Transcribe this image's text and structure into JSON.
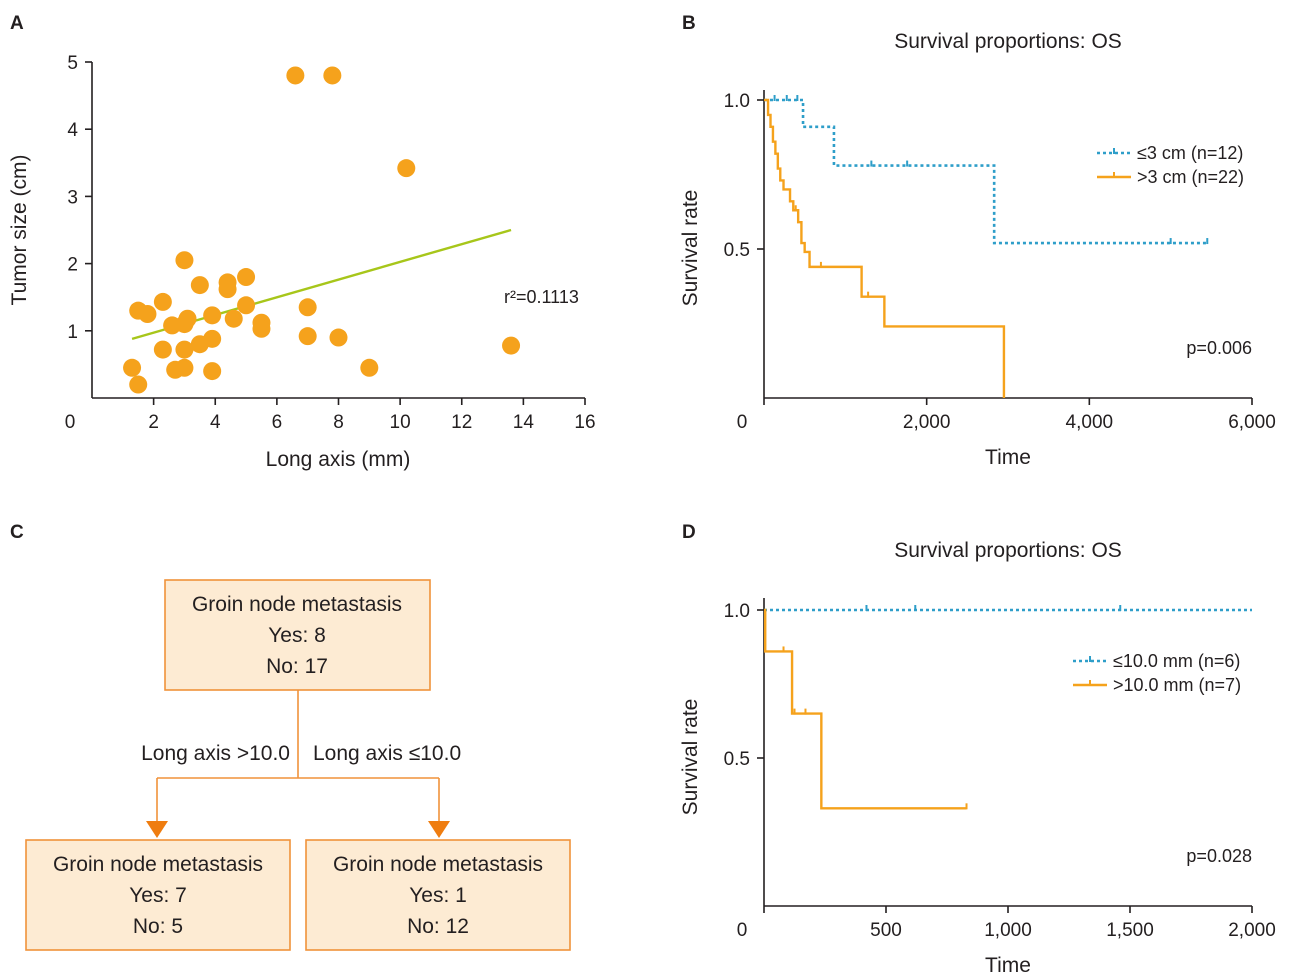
{
  "panel_labels": [
    "A",
    "B",
    "C",
    "D"
  ],
  "colors": {
    "orange": "#f5a21c",
    "blue": "#2e9ec9",
    "green": "#a7c61a",
    "box_fill": "#fdebd3",
    "box_border": "#f0923a"
  },
  "chart_data": [
    {
      "panel": "A",
      "type": "scatter",
      "title": "",
      "xlabel": "Long axis (mm)",
      "ylabel": "Tumor size (cm)",
      "xlim": [
        0,
        16
      ],
      "ylim": [
        0,
        5
      ],
      "xticks": [
        "0",
        "2",
        "4",
        "6",
        "8",
        "10",
        "12",
        "14",
        "16"
      ],
      "yticks": [
        "1",
        "2",
        "3",
        "4",
        "5"
      ],
      "annotation": "r²=0.1113",
      "points": [
        {
          "x": 1.3,
          "y": 0.45
        },
        {
          "x": 1.5,
          "y": 0.2
        },
        {
          "x": 1.5,
          "y": 1.3
        },
        {
          "x": 1.8,
          "y": 1.25
        },
        {
          "x": 2.3,
          "y": 1.43
        },
        {
          "x": 2.3,
          "y": 0.72
        },
        {
          "x": 2.6,
          "y": 1.08
        },
        {
          "x": 2.7,
          "y": 0.42
        },
        {
          "x": 3.0,
          "y": 2.05
        },
        {
          "x": 3.0,
          "y": 1.1
        },
        {
          "x": 3.0,
          "y": 0.72
        },
        {
          "x": 3.0,
          "y": 0.45
        },
        {
          "x": 3.1,
          "y": 1.18
        },
        {
          "x": 3.5,
          "y": 1.68
        },
        {
          "x": 3.5,
          "y": 0.8
        },
        {
          "x": 3.9,
          "y": 1.23
        },
        {
          "x": 3.9,
          "y": 0.88
        },
        {
          "x": 3.9,
          "y": 0.4
        },
        {
          "x": 4.4,
          "y": 1.72
        },
        {
          "x": 4.4,
          "y": 1.62
        },
        {
          "x": 4.6,
          "y": 1.18
        },
        {
          "x": 5.0,
          "y": 1.8
        },
        {
          "x": 5.0,
          "y": 1.38
        },
        {
          "x": 5.5,
          "y": 1.12
        },
        {
          "x": 5.5,
          "y": 1.03
        },
        {
          "x": 6.6,
          "y": 4.8
        },
        {
          "x": 7.0,
          "y": 1.35
        },
        {
          "x": 7.0,
          "y": 0.92
        },
        {
          "x": 7.8,
          "y": 4.8
        },
        {
          "x": 8.0,
          "y": 0.9
        },
        {
          "x": 9.0,
          "y": 0.45
        },
        {
          "x": 10.2,
          "y": 3.42
        },
        {
          "x": 13.6,
          "y": 0.78
        }
      ],
      "fit_line": {
        "x": [
          1.3,
          13.6
        ],
        "y": [
          0.88,
          2.5
        ]
      }
    },
    {
      "panel": "B",
      "type": "line",
      "title": "Survival proportions: OS",
      "xlabel": "Time",
      "ylabel": "Survival rate",
      "xlim": [
        0,
        6000
      ],
      "ylim": [
        0,
        1.0
      ],
      "xticks": [
        "0",
        "2,000",
        "4,000",
        "6,000"
      ],
      "yticks": [
        "0.5",
        "1.0"
      ],
      "annotation": "p=0.006",
      "legend_position": "top-right",
      "series": [
        {
          "name": "≤3 cm (n=12)",
          "style": "dotted",
          "x": [
            0,
            480,
            480,
            860,
            860,
            2830,
            2830,
            5450
          ],
          "y": [
            1.0,
            1.0,
            0.91,
            0.91,
            0.78,
            0.78,
            0.52,
            0.52
          ],
          "censor": [
            [
              130,
              1.0
            ],
            [
              280,
              1.0
            ],
            [
              410,
              1.0
            ],
            [
              1320,
              0.78
            ],
            [
              1760,
              0.78
            ],
            [
              5000,
              0.52
            ],
            [
              5450,
              0.52
            ]
          ]
        },
        {
          "name": ">3 cm (n=22)",
          "style": "solid",
          "x": [
            0,
            50,
            50,
            80,
            80,
            110,
            110,
            140,
            140,
            170,
            170,
            200,
            200,
            240,
            240,
            280,
            280,
            320,
            320,
            360,
            360,
            420,
            420,
            460,
            460,
            500,
            500,
            560,
            560,
            1200,
            1200,
            1480,
            1480,
            2950,
            2950
          ],
          "y": [
            1.0,
            1.0,
            0.95,
            0.95,
            0.91,
            0.91,
            0.86,
            0.86,
            0.82,
            0.82,
            0.77,
            0.77,
            0.73,
            0.73,
            0.7,
            0.7,
            0.7,
            0.7,
            0.66,
            0.66,
            0.63,
            0.63,
            0.59,
            0.59,
            0.52,
            0.52,
            0.49,
            0.49,
            0.44,
            0.44,
            0.34,
            0.34,
            0.24,
            0.24,
            0
          ],
          "censor": [
            [
              390,
              0.63
            ],
            [
              700,
              0.44
            ],
            [
              1280,
              0.34
            ]
          ]
        }
      ]
    },
    {
      "panel": "D",
      "type": "line",
      "title": "Survival proportions: OS",
      "xlabel": "Time",
      "ylabel": "Survival rate",
      "xlim": [
        0,
        2000
      ],
      "ylim": [
        0,
        1.0
      ],
      "xticks": [
        "0",
        "500",
        "1,000",
        "1,500",
        "2,000"
      ],
      "yticks": [
        "0.5",
        "1.0"
      ],
      "annotation": "p=0.028",
      "legend_position": "top-right",
      "series": [
        {
          "name": "≤10.0 mm (n=6)",
          "style": "dotted",
          "x": [
            0,
            2000
          ],
          "y": [
            1.0,
            1.0
          ],
          "censor": [
            [
              420,
              1.0
            ],
            [
              620,
              1.0
            ],
            [
              1460,
              1.0
            ]
          ]
        },
        {
          "name": ">10.0 mm (n=7)",
          "style": "solid",
          "x": [
            0,
            5,
            5,
            115,
            115,
            235,
            235,
            830
          ],
          "y": [
            1.0,
            1.0,
            0.86,
            0.86,
            0.65,
            0.65,
            0.33,
            0.33
          ],
          "censor": [
            [
              80,
              0.86
            ],
            [
              125,
              0.65
            ],
            [
              170,
              0.65
            ],
            [
              830,
              0.33
            ]
          ]
        }
      ]
    }
  ],
  "tree": {
    "root": {
      "title": "Groin node metastasis",
      "yes": "Yes: 8",
      "no": "No: 17"
    },
    "left_branch_label": "Long axis >10.0",
    "right_branch_label": "Long axis ≤10.0",
    "left": {
      "title": "Groin node metastasis",
      "yes": "Yes: 7",
      "no": "No: 5"
    },
    "right": {
      "title": "Groin node metastasis",
      "yes": "Yes: 1",
      "no": "No: 12"
    }
  }
}
